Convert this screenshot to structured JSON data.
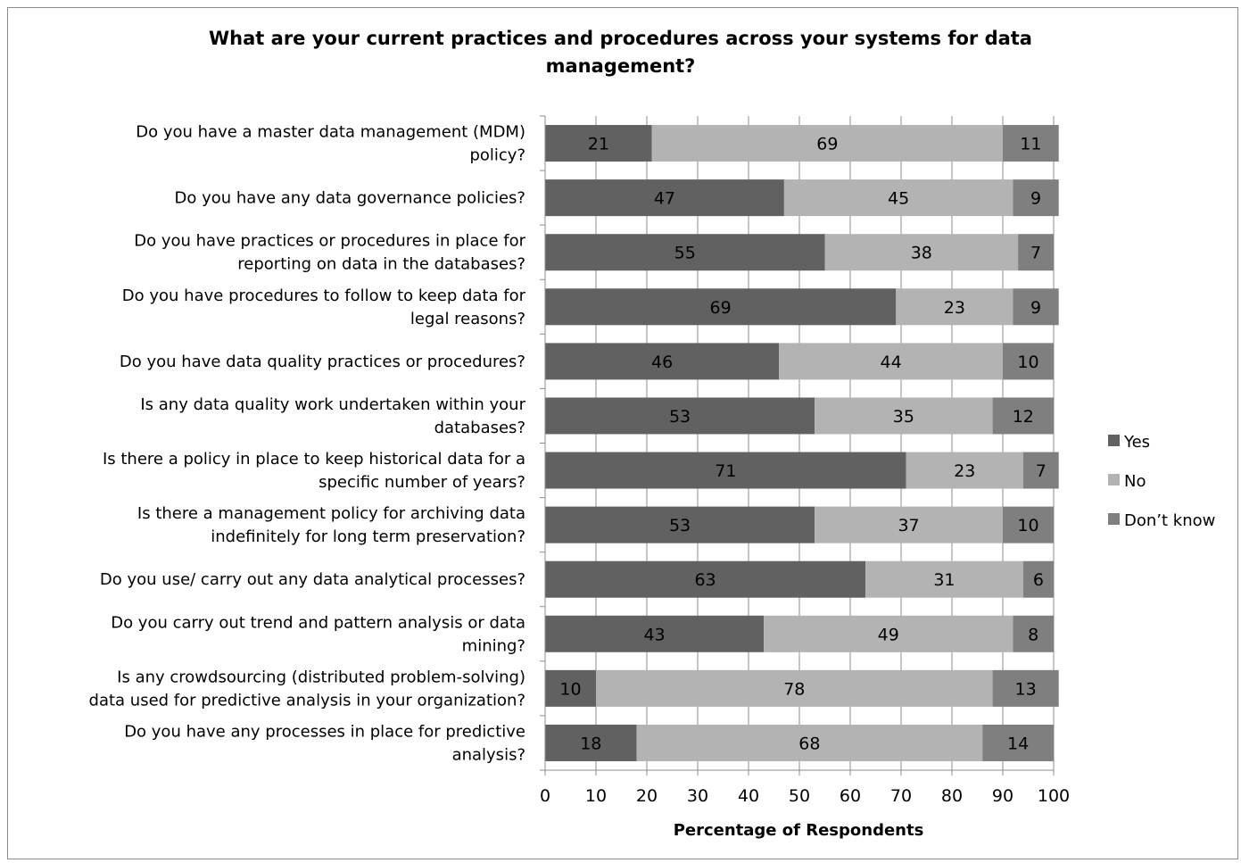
{
  "chart_data": {
    "type": "bar",
    "orientation": "horizontal",
    "stacked": true,
    "title": [
      "What are your current practices and procedures across your systems for data",
      "management?"
    ],
    "xlabel": "Percentage of Respondents",
    "ylabel": "",
    "xlim": [
      0,
      100
    ],
    "xticks": [
      "0",
      "10",
      "20",
      "30",
      "40",
      "50",
      "60",
      "70",
      "80",
      "90",
      "100"
    ],
    "grid": "vertical",
    "legend_position": "right",
    "categories": [
      [
        "Do you have a master data management (MDM)",
        "policy?"
      ],
      [
        "Do you have any data governance policies?"
      ],
      [
        "Do you have practices or procedures in place for",
        "reporting on data in the databases?"
      ],
      [
        "Do you have procedures to follow to keep data for",
        "legal reasons?"
      ],
      [
        "Do you have data quality practices or procedures?"
      ],
      [
        "Is any data quality work undertaken within your",
        "databases?"
      ],
      [
        "Is there a policy in place to keep historical data for a",
        "specific number of years?"
      ],
      [
        "Is there a management policy for archiving data",
        "indefinitely for long term preservation?"
      ],
      [
        "Do you use/ carry out any data analytical processes?"
      ],
      [
        "Do you carry out trend and pattern analysis or data",
        "mining?"
      ],
      [
        "Is any crowdsourcing (distributed problem-solving)",
        "data used for predictive analysis in your organization?"
      ],
      [
        "Do you have any processes in place for predictive",
        "analysis?"
      ]
    ],
    "series": [
      {
        "name": "Yes",
        "color": "#616161",
        "values": [
          21,
          47,
          55,
          69,
          46,
          53,
          71,
          53,
          63,
          43,
          10,
          18
        ]
      },
      {
        "name": "No",
        "color": "#b3b3b3",
        "values": [
          69,
          45,
          38,
          23,
          44,
          35,
          23,
          37,
          31,
          49,
          78,
          68
        ]
      },
      {
        "name": "Don’t know",
        "color": "#7f7f7f",
        "values": [
          11,
          9,
          7,
          9,
          10,
          12,
          7,
          10,
          6,
          8,
          13,
          14
        ]
      }
    ]
  }
}
